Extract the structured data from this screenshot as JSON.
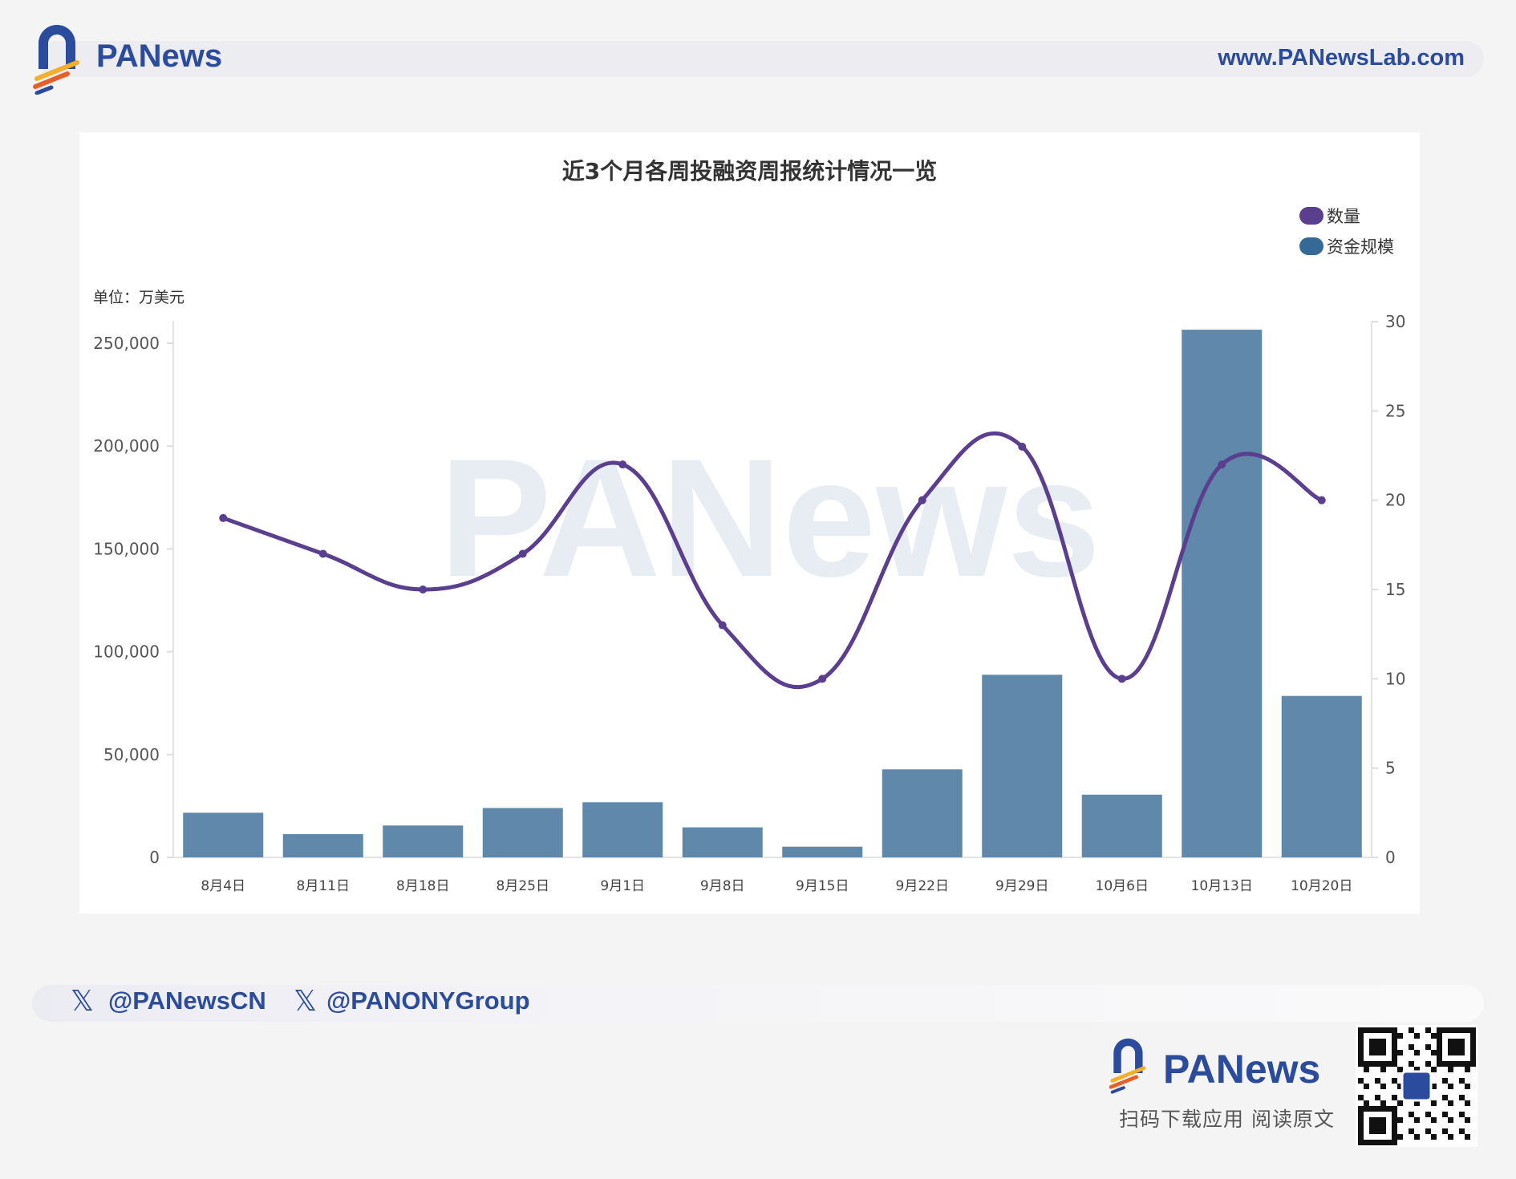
{
  "header": {
    "brand": "PANews",
    "url": "www.PANewsLab.com"
  },
  "chart_data": {
    "type": "bar+line",
    "title": "近3个月各周投融资周报统计情况一览",
    "unit_label": "单位：万美元",
    "categories": [
      "8月4日",
      "8月11日",
      "8月18日",
      "8月25日",
      "9月1日",
      "9月8日",
      "9月15日",
      "9月22日",
      "9月29日",
      "10月6日",
      "10月13日",
      "10月20日"
    ],
    "series": [
      {
        "name": "数量",
        "type": "line",
        "axis": "right",
        "color": "#5b3f8f",
        "values": [
          19,
          17,
          15,
          17,
          22,
          13,
          10,
          20,
          23,
          10,
          22,
          20
        ]
      },
      {
        "name": "资金规模",
        "type": "bar",
        "axis": "left",
        "color": "#5a84a8",
        "legend_color": "#356a96",
        "values": [
          21700,
          11300,
          15500,
          24000,
          26800,
          14600,
          5200,
          42800,
          88800,
          30500,
          256600,
          78500
        ]
      }
    ],
    "left_axis": {
      "range": [
        0,
        250000
      ],
      "ticks": [
        "0",
        "50,000",
        "100,000",
        "150,000",
        "200,000",
        "250,000"
      ]
    },
    "right_axis": {
      "range": [
        0,
        30
      ],
      "ticks": [
        "0",
        "5",
        "10",
        "15",
        "20",
        "25",
        "30"
      ]
    },
    "legend_position": "top-right",
    "grid": false,
    "watermark": "PANews"
  },
  "footer": {
    "socials": [
      "@PANewsCN",
      "@PANONYGroup"
    ],
    "brand": "PANews",
    "cta": "扫码下载应用  阅读原文"
  }
}
